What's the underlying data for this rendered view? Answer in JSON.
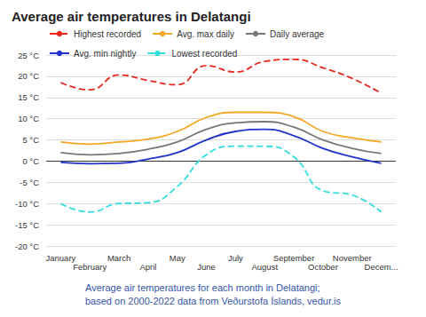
{
  "chart_data": {
    "type": "line",
    "title": "Average air temperatures in Delatangi",
    "caption": [
      "Average air temperatures for each month in Delatangi;",
      "based on 2000-2022 data from Veðurstofa Íslands, vedur.is"
    ],
    "categories": [
      "January",
      "February",
      "March",
      "April",
      "May",
      "June",
      "July",
      "August",
      "September",
      "October",
      "November",
      "Decem..."
    ],
    "series": [
      {
        "name": "Highest recorded",
        "color": "#e8281e",
        "line_style": "dashed",
        "values": [
          18.5,
          16.8,
          20.3,
          19,
          18,
          22.5,
          21,
          23.5,
          24,
          22,
          19.5,
          16
        ]
      },
      {
        "name": "Avg. max daily",
        "color": "#f5a623",
        "line_style": "solid",
        "values": [
          4.5,
          4,
          4.5,
          5.2,
          7,
          10.3,
          11.5,
          11.5,
          10.5,
          7,
          5.5,
          4.5
        ]
      },
      {
        "name": "Daily average",
        "color": "#777777",
        "line_style": "solid",
        "values": [
          2,
          1.5,
          1.8,
          2.8,
          4.5,
          7.5,
          9,
          9.3,
          8,
          5,
          3,
          1.8
        ]
      },
      {
        "name": "Avg. min nightly",
        "color": "#2233cc",
        "line_style": "solid",
        "values": [
          -0.3,
          -0.6,
          -0.5,
          0.5,
          2,
          5,
          7,
          7.5,
          6,
          3,
          1,
          -0.5
        ]
      },
      {
        "name": "Lowest recorded",
        "color": "#33dddd",
        "line_style": "dashed",
        "values": [
          -10,
          -12,
          -10,
          -9.8,
          -6,
          1.5,
          3.5,
          3.5,
          1,
          -7,
          -8,
          -12
        ]
      }
    ],
    "ylim": [
      -20,
      25
    ],
    "yticks": [
      {
        "value": -20,
        "label": "-20 °C"
      },
      {
        "value": -15,
        "label": "-15 °C"
      },
      {
        "value": -10,
        "label": "-10 °C"
      },
      {
        "value": -5,
        "label": "-5 °C"
      },
      {
        "value": 0,
        "label": "0 °C"
      },
      {
        "value": 5,
        "label": "5 °C"
      },
      {
        "value": 10,
        "label": "10 °C"
      },
      {
        "value": 15,
        "label": "15 °C"
      },
      {
        "value": 20,
        "label": "20 °C"
      },
      {
        "value": 25,
        "label": "25 °C"
      }
    ],
    "grid": true,
    "legend": "top"
  }
}
